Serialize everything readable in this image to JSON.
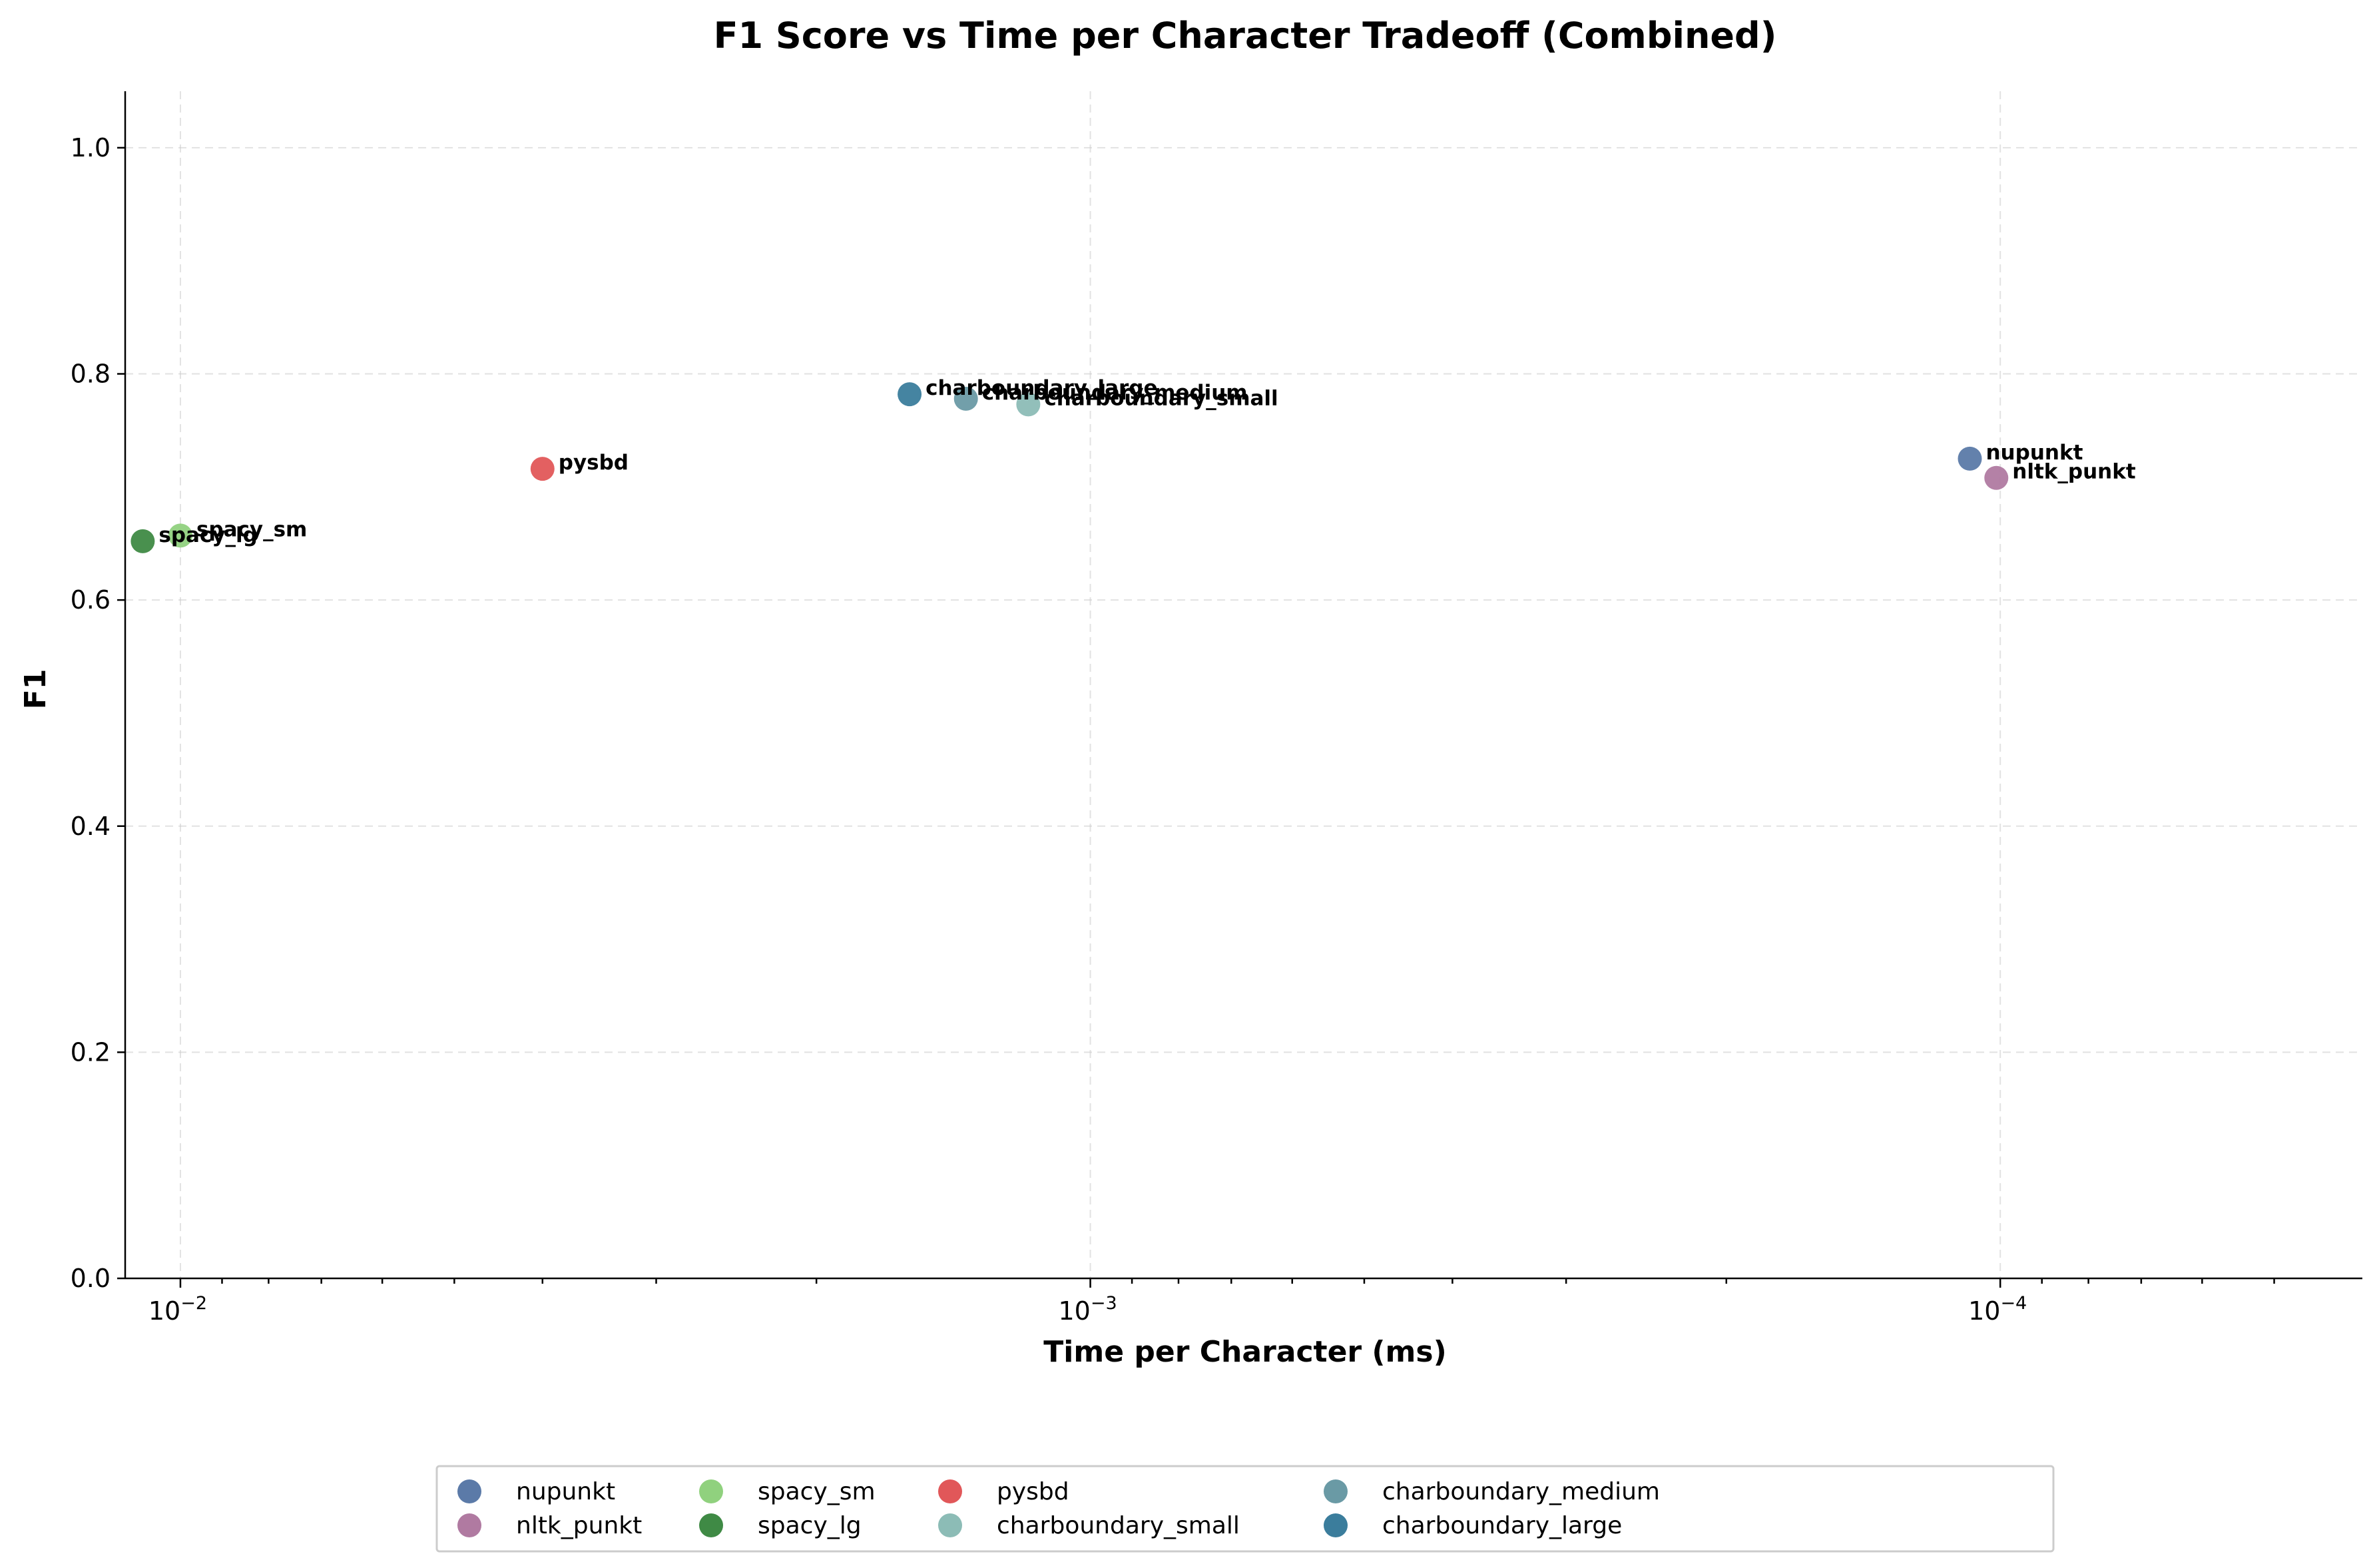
{
  "chart_data": {
    "type": "scatter",
    "title": "F1 Score vs Time per Character Tradeoff (Combined)",
    "xlabel": "Time per Character (ms)",
    "ylabel": "F1",
    "x_scale": "log",
    "x_inverted": true,
    "xlim": [
      0.0115,
      4e-05
    ],
    "ylim": [
      0,
      1.05
    ],
    "x_major_ticks": [
      {
        "value": 0.01,
        "base": "10",
        "exp": "−2"
      },
      {
        "value": 0.001,
        "base": "10",
        "exp": "−3"
      },
      {
        "value": 0.0001,
        "base": "10",
        "exp": "−4"
      }
    ],
    "y_ticks": [
      {
        "value": 0.0,
        "label": "0.0"
      },
      {
        "value": 0.2,
        "label": "0.2"
      },
      {
        "value": 0.4,
        "label": "0.4"
      },
      {
        "value": 0.6,
        "label": "0.6"
      },
      {
        "value": 0.8,
        "label": "0.8"
      },
      {
        "value": 1.0,
        "label": "1.0"
      }
    ],
    "grid": true,
    "legend_position": "bottom-center",
    "series": [
      {
        "name": "nupunkt",
        "x": 0.000108,
        "y": 0.725,
        "color": "#5b7aa8"
      },
      {
        "name": "nltk_punkt",
        "x": 0.000101,
        "y": 0.708,
        "color": "#b07aa1"
      },
      {
        "name": "spacy_sm",
        "x": 0.01,
        "y": 0.657,
        "color": "#90d17e"
      },
      {
        "name": "spacy_lg",
        "x": 0.011,
        "y": 0.652,
        "color": "#3f8a45"
      },
      {
        "name": "pysbd",
        "x": 0.004,
        "y": 0.716,
        "color": "#e15759"
      },
      {
        "name": "charboundary_small",
        "x": 0.00117,
        "y": 0.773,
        "color": "#8cbcb6"
      },
      {
        "name": "charboundary_medium",
        "x": 0.00137,
        "y": 0.778,
        "color": "#6a9aa5"
      },
      {
        "name": "charboundary_large",
        "x": 0.00158,
        "y": 0.782,
        "color": "#3b7d9c"
      }
    ]
  }
}
